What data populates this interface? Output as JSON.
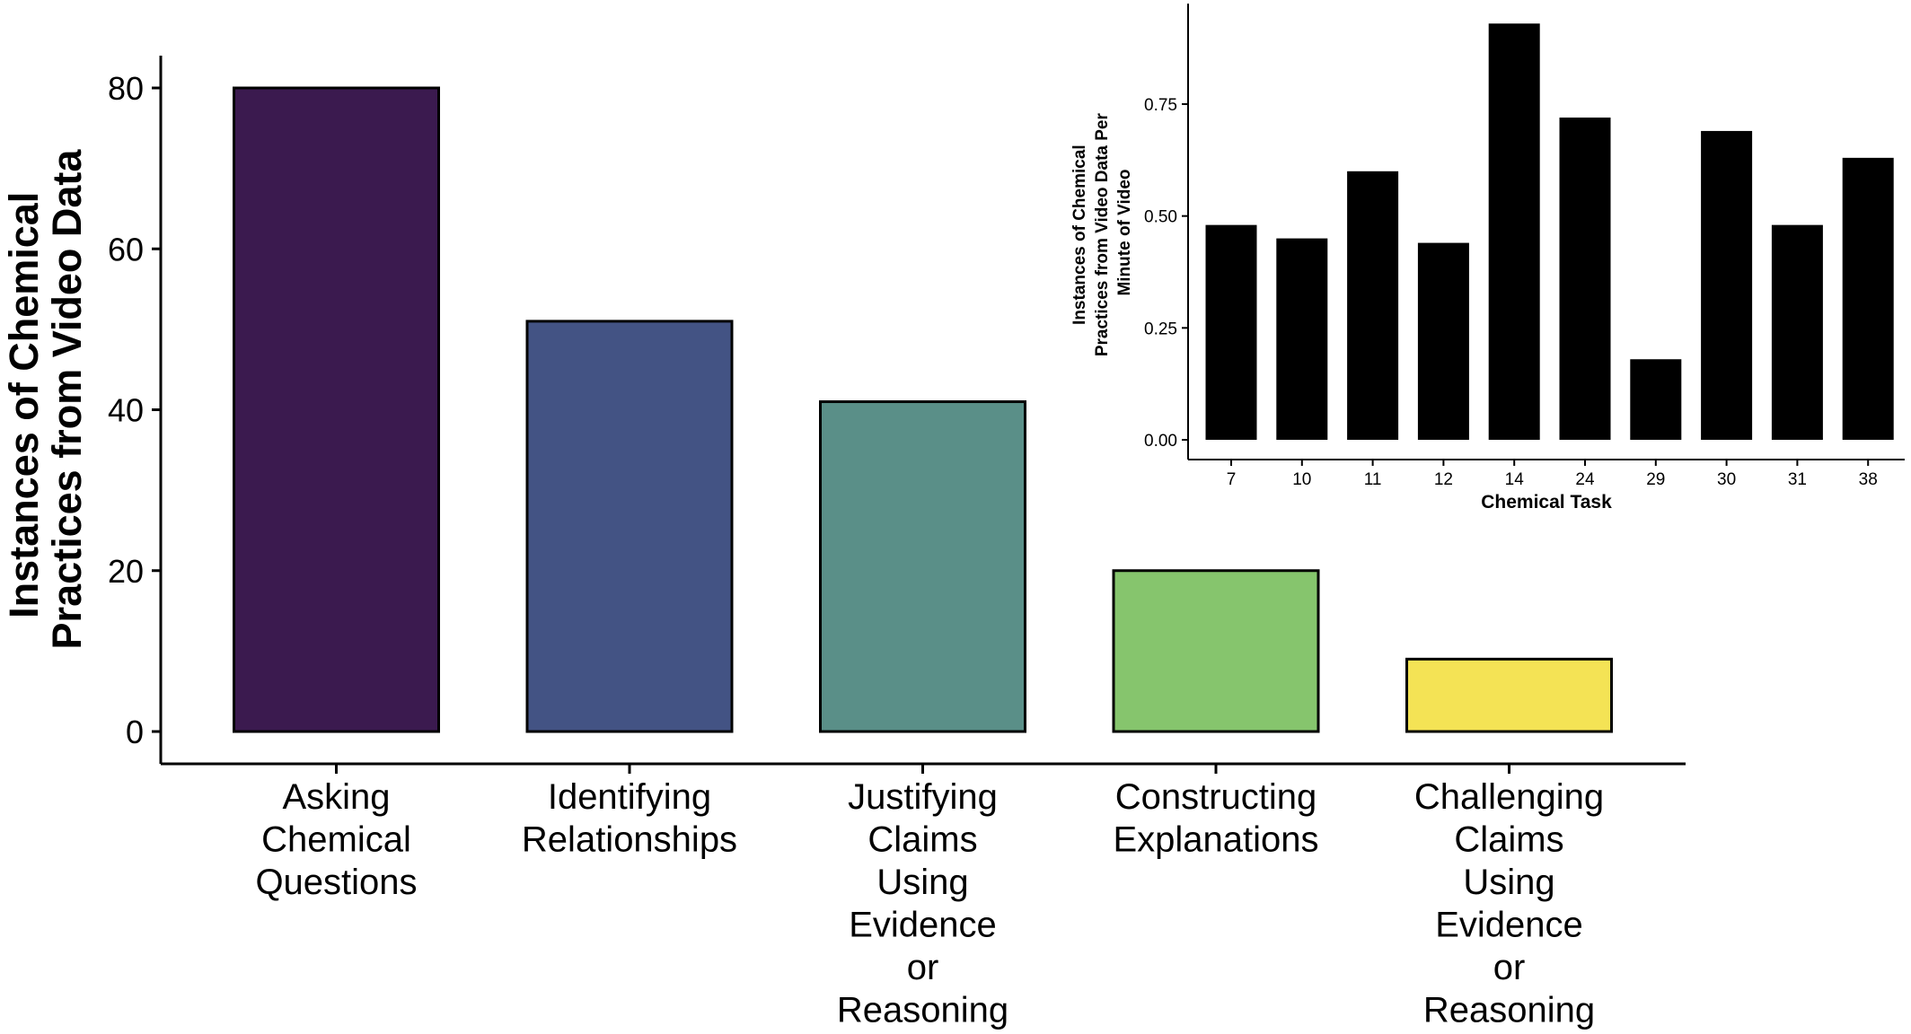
{
  "chart_data": [
    {
      "type": "bar",
      "title": "",
      "xlabel": "",
      "ylabel": [
        "Instances of Chemical",
        "Practices from Video Data"
      ],
      "ylim": [
        0,
        84
      ],
      "yticks": [
        0,
        20,
        40,
        60,
        80
      ],
      "categories": [
        [
          "Asking",
          "Chemical",
          "Questions"
        ],
        [
          "Identifying",
          "Relationships"
        ],
        [
          "Justifying",
          "Claims",
          "Using",
          "Evidence",
          "or",
          "Reasoning"
        ],
        [
          "Constructing",
          "Explanations"
        ],
        [
          "Challenging",
          "Claims",
          "Using",
          "Evidence",
          "or",
          "Reasoning"
        ]
      ],
      "values": [
        80,
        51,
        41,
        20,
        9
      ],
      "colors": [
        "#3b1a4f",
        "#435384",
        "#5a8f88",
        "#86c56d",
        "#f4e355"
      ],
      "grid": false,
      "legend": "none"
    },
    {
      "type": "bar",
      "title": "",
      "xlabel": "Chemical Task",
      "ylabel": [
        "Instances of Chemical",
        "Practices from Video Data Per",
        "Minute of Video"
      ],
      "ylim": [
        -0.04,
        0.97
      ],
      "yticks": [
        "0.00",
        "0.25",
        "0.50",
        "0.75"
      ],
      "categories": [
        "7",
        "10",
        "11",
        "12",
        "14",
        "24",
        "29",
        "30",
        "31",
        "38"
      ],
      "values": [
        0.48,
        0.45,
        0.6,
        0.44,
        0.93,
        0.72,
        0.18,
        0.69,
        0.48,
        0.63
      ],
      "colors": [
        "#000000"
      ],
      "grid": false,
      "legend": "none",
      "placement": "inset top-right"
    }
  ]
}
